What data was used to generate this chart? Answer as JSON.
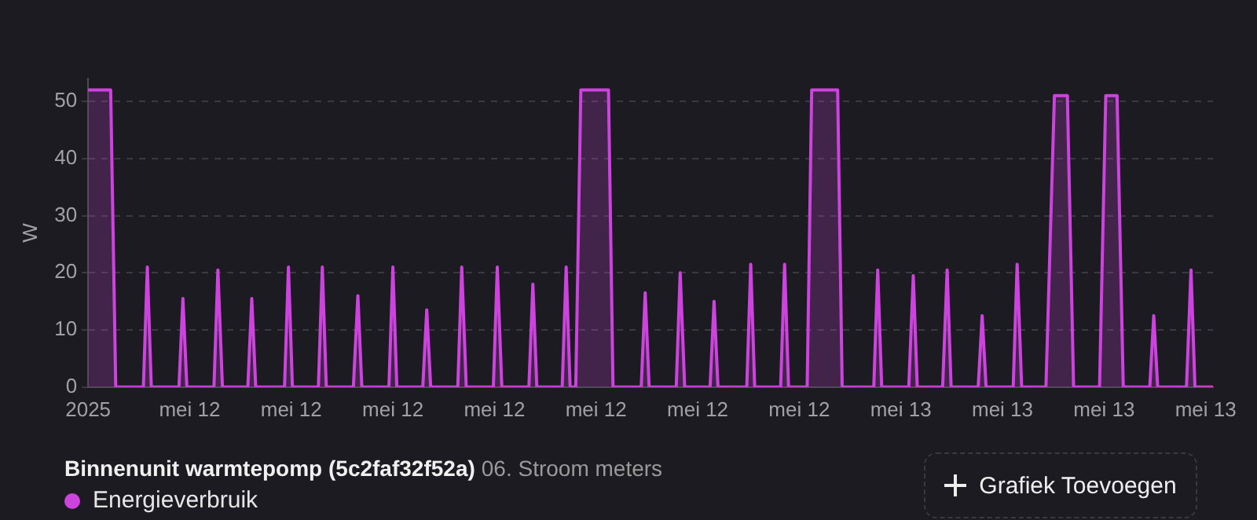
{
  "chart_data": {
    "type": "area",
    "title": "Binnenunit warmtepomp (5c2faf32f52a)",
    "subtitle": "06. Stroom meters",
    "ylabel": "W",
    "annotations": [
      "Grafiek Toevoegen"
    ],
    "x": [
      "2025-05-12T00:00",
      "2025-05-12T00:17",
      "2025-05-12T00:28",
      "2025-05-12T00:40",
      "2025-05-12T00:49",
      "2025-05-12T01:38",
      "2025-05-12T01:45",
      "2025-05-12T01:52",
      "2025-05-12T02:41",
      "2025-05-12T02:48",
      "2025-05-12T02:55",
      "2025-05-12T03:43",
      "2025-05-12T03:50",
      "2025-05-12T03:58",
      "2025-05-12T04:43",
      "2025-05-12T04:50",
      "2025-05-12T04:57",
      "2025-05-12T05:48",
      "2025-05-12T05:55",
      "2025-05-12T06:02",
      "2025-05-12T06:48",
      "2025-05-12T06:55",
      "2025-05-12T07:02",
      "2025-05-12T07:50",
      "2025-05-12T07:58",
      "2025-05-12T08:05",
      "2025-05-12T08:53",
      "2025-05-12T09:00",
      "2025-05-12T09:07",
      "2025-05-12T09:53",
      "2025-05-12T10:00",
      "2025-05-12T10:07",
      "2025-05-12T10:55",
      "2025-05-12T11:02",
      "2025-05-12T11:10",
      "2025-05-12T11:58",
      "2025-05-12T12:05",
      "2025-05-12T12:13",
      "2025-05-12T13:01",
      "2025-05-12T13:08",
      "2025-05-12T13:15",
      "2025-05-12T14:00",
      "2025-05-12T14:07",
      "2025-05-12T14:14",
      "2025-05-12T14:24",
      "2025-05-12T14:33",
      "2025-05-12T14:57",
      "2025-05-12T15:22",
      "2025-05-12T15:30",
      "2025-05-12T16:20",
      "2025-05-12T16:27",
      "2025-05-12T16:34",
      "2025-05-12T17:22",
      "2025-05-12T17:29",
      "2025-05-12T17:37",
      "2025-05-12T18:22",
      "2025-05-12T18:29",
      "2025-05-12T18:36",
      "2025-05-12T19:27",
      "2025-05-12T19:34",
      "2025-05-12T19:41",
      "2025-05-12T20:27",
      "2025-05-12T20:34",
      "2025-05-12T20:41",
      "2025-05-12T21:14",
      "2025-05-12T21:22",
      "2025-05-12T21:45",
      "2025-05-12T22:08",
      "2025-05-12T22:16",
      "2025-05-12T23:12",
      "2025-05-12T23:19",
      "2025-05-12T23:26",
      "2025-05-13T00:14",
      "2025-05-13T00:22",
      "2025-05-13T00:29",
      "2025-05-13T01:14",
      "2025-05-13T01:22",
      "2025-05-13T01:29",
      "2025-05-13T02:17",
      "2025-05-13T02:24",
      "2025-05-13T02:31",
      "2025-05-13T03:19",
      "2025-05-13T03:26",
      "2025-05-13T03:34",
      "2025-05-13T04:17",
      "2025-05-13T04:32",
      "2025-05-13T04:55",
      "2025-05-13T05:06",
      "2025-05-13T05:52",
      "2025-05-13T06:03",
      "2025-05-13T06:23",
      "2025-05-13T06:34",
      "2025-05-13T07:21",
      "2025-05-13T07:28",
      "2025-05-13T07:35",
      "2025-05-13T08:26",
      "2025-05-13T08:34",
      "2025-05-13T08:41",
      "2025-05-13T09:13"
    ],
    "series": [
      {
        "name": "Energieverbruik",
        "color": "#cc44dd",
        "values": [
          52,
          52,
          52,
          52,
          0,
          0,
          21,
          0,
          0,
          15.5,
          0,
          0,
          20.5,
          0,
          0,
          15.5,
          0,
          0,
          21,
          0,
          0,
          21,
          0,
          0,
          16,
          0,
          0,
          21,
          0,
          0,
          13.5,
          0,
          0,
          21,
          0,
          0,
          21,
          0,
          0,
          18,
          0,
          0,
          21,
          0,
          0,
          52,
          52,
          52,
          0,
          0,
          16.5,
          0,
          0,
          20,
          0,
          0,
          15,
          0,
          0,
          21.5,
          0,
          0,
          21.5,
          0,
          0,
          52,
          52,
          52,
          0,
          0,
          20.5,
          0,
          0,
          19.5,
          0,
          0,
          20.5,
          0,
          0,
          12.5,
          0,
          0,
          21.5,
          0,
          0,
          51,
          51,
          0,
          0,
          51,
          51,
          0,
          0,
          12.5,
          0,
          0,
          20.5,
          0,
          0
        ]
      }
    ],
    "xlim": [
      "2025-05-12T00:00",
      "2025-05-13T09:13"
    ],
    "xticks": [
      {
        "value": "2025-05-12T00:00",
        "label": "2025"
      },
      {
        "value": "2025-05-12T03:00",
        "label": "mei 12"
      },
      {
        "value": "2025-05-12T06:00",
        "label": "mei 12"
      },
      {
        "value": "2025-05-12T09:00",
        "label": "mei 12"
      },
      {
        "value": "2025-05-12T12:00",
        "label": "mei 12"
      },
      {
        "value": "2025-05-12T15:00",
        "label": "mei 12"
      },
      {
        "value": "2025-05-12T18:00",
        "label": "mei 12"
      },
      {
        "value": "2025-05-12T21:00",
        "label": "mei 12"
      },
      {
        "value": "2025-05-13T00:00",
        "label": "mei 13"
      },
      {
        "value": "2025-05-13T03:00",
        "label": "mei 13"
      },
      {
        "value": "2025-05-13T06:00",
        "label": "mei 13"
      },
      {
        "value": "2025-05-13T09:00",
        "label": "mei 13"
      }
    ],
    "ylim": [
      0,
      54
    ],
    "yticks": [
      0,
      10,
      20,
      30,
      40,
      50
    ],
    "grid": "y",
    "legend": "bottom left",
    "marker": "none",
    "line_style": "solid"
  }
}
